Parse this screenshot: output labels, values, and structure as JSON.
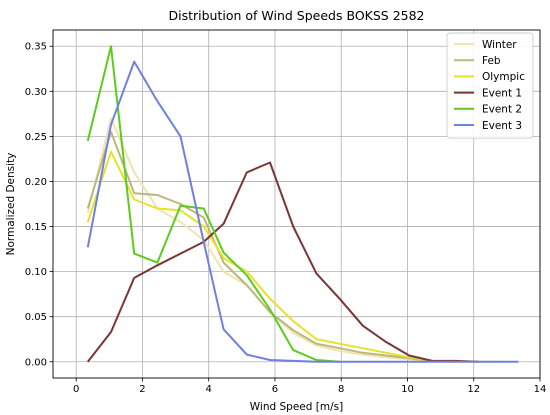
{
  "chart_data": {
    "type": "line",
    "title": "Distribution of Wind Speeds BOKSS 2582",
    "xlabel": "Wind Speed [m/s]",
    "ylabel": "Normalized Density",
    "xlim": [
      -0.7,
      14
    ],
    "ylim": [
      -0.018,
      0.368
    ],
    "xticks": [
      0,
      2,
      4,
      6,
      8,
      10,
      12,
      14
    ],
    "yticks": [
      0.0,
      0.05,
      0.1,
      0.15,
      0.2,
      0.25,
      0.3,
      0.35
    ],
    "xtick_labels": [
      "0",
      "2",
      "4",
      "6",
      "8",
      "10",
      "12",
      "14"
    ],
    "ytick_labels": [
      "0.00",
      "0.05",
      "0.10",
      "0.15",
      "0.20",
      "0.25",
      "0.30",
      "0.35"
    ],
    "grid": true,
    "legend_position": "top-right",
    "series": [
      {
        "name": "Winter",
        "color": "#f0e4ae",
        "x": [
          0.35,
          1.05,
          1.75,
          2.45,
          3.15,
          3.85,
          4.45,
          5.15,
          5.85,
          6.55,
          7.25,
          7.95,
          8.65,
          9.35,
          10.05,
          10.75,
          11.45,
          12.15,
          12.85
        ],
        "y": [
          0.165,
          0.27,
          0.21,
          0.17,
          0.155,
          0.135,
          0.1,
          0.085,
          0.055,
          0.032,
          0.018,
          0.012,
          0.008,
          0.005,
          0.003,
          0.001,
          0.0,
          0.0,
          0.0
        ]
      },
      {
        "name": "Feb",
        "color": "#bdb77b",
        "x": [
          0.35,
          1.05,
          1.75,
          2.45,
          3.15,
          3.85,
          4.45,
          5.15,
          5.85,
          6.55,
          7.25,
          7.95,
          8.65,
          9.35,
          10.05,
          10.75
        ],
        "y": [
          0.17,
          0.255,
          0.187,
          0.185,
          0.175,
          0.16,
          0.11,
          0.085,
          0.055,
          0.035,
          0.02,
          0.015,
          0.01,
          0.007,
          0.004,
          0.001
        ]
      },
      {
        "name": "Olympic",
        "color": "#e6e12a",
        "x": [
          0.35,
          1.05,
          1.75,
          2.45,
          3.15,
          3.85,
          4.45,
          5.15,
          5.85,
          6.55,
          7.25,
          7.95,
          8.65,
          9.35,
          10.05,
          10.75
        ],
        "y": [
          0.155,
          0.233,
          0.18,
          0.17,
          0.168,
          0.15,
          0.115,
          0.1,
          0.07,
          0.045,
          0.025,
          0.02,
          0.015,
          0.01,
          0.005,
          0.001
        ]
      },
      {
        "name": "Event 1",
        "color": "#7a3535",
        "x": [
          0.35,
          1.05,
          1.75,
          2.45,
          3.15,
          3.85,
          4.45,
          5.15,
          5.85,
          6.55,
          7.25,
          7.95,
          8.65,
          9.35,
          10.05,
          10.75,
          11.45,
          12.15
        ],
        "y": [
          0.0,
          0.033,
          0.093,
          0.107,
          0.12,
          0.133,
          0.153,
          0.21,
          0.221,
          0.15,
          0.098,
          0.07,
          0.04,
          0.022,
          0.007,
          0.001,
          0.001,
          0.0
        ]
      },
      {
        "name": "Event 2",
        "color": "#5ccc1a",
        "x": [
          0.35,
          1.05,
          1.75,
          2.45,
          3.15,
          3.85,
          4.45,
          5.15,
          5.85,
          6.55,
          7.25,
          7.95
        ],
        "y": [
          0.245,
          0.35,
          0.12,
          0.11,
          0.173,
          0.17,
          0.121,
          0.096,
          0.058,
          0.013,
          0.002,
          0.0
        ]
      },
      {
        "name": "Event 3",
        "color": "#7080e0",
        "x": [
          0.35,
          1.05,
          1.75,
          2.45,
          3.15,
          3.85,
          4.45,
          5.15,
          5.85,
          6.55,
          7.25,
          7.95,
          8.65,
          9.35,
          10.05,
          10.75,
          11.45,
          12.15,
          12.85,
          13.35
        ],
        "y": [
          0.127,
          0.263,
          0.333,
          0.289,
          0.25,
          0.133,
          0.036,
          0.008,
          0.002,
          0.001,
          0.0,
          0.0,
          0.0,
          0.0,
          0.0,
          0.0,
          0.0,
          0.0,
          0.0,
          0.0
        ]
      }
    ]
  }
}
